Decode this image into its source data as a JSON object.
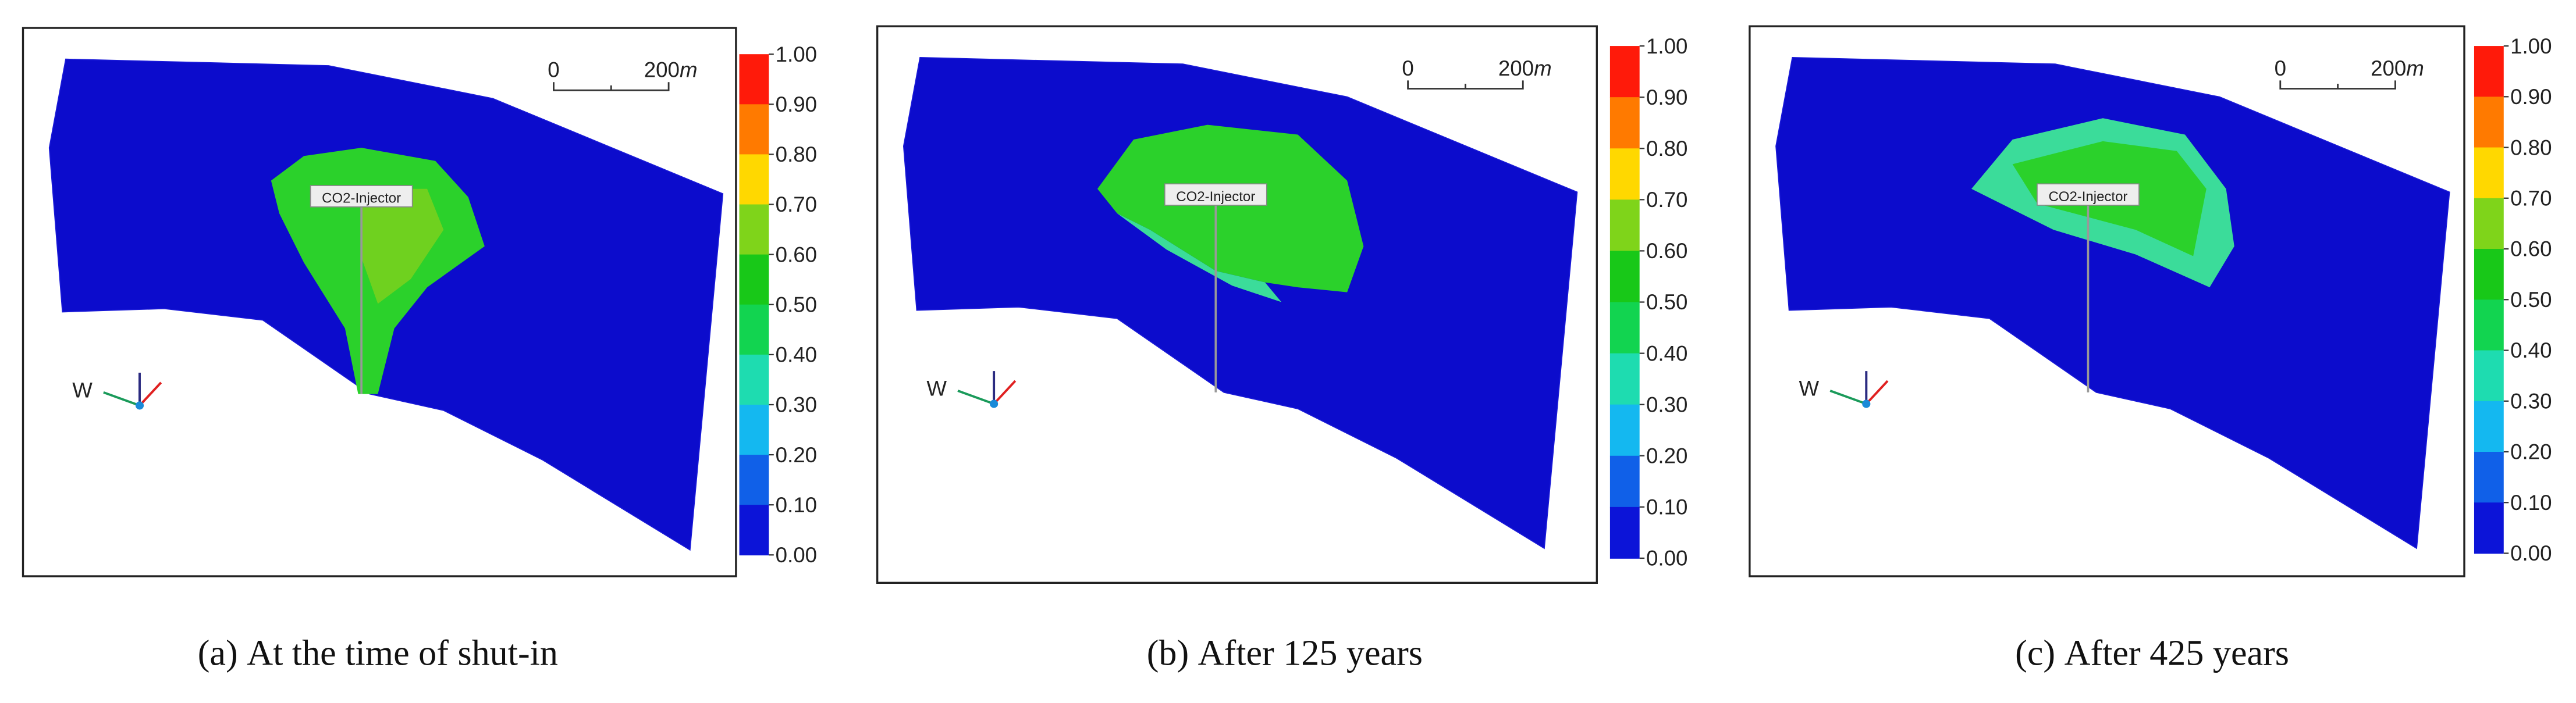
{
  "panels": [
    {
      "label": "(a)",
      "caption": "At the time of shut-in",
      "scale_bar": {
        "start": "0",
        "end": "200",
        "unit": "m"
      },
      "well_label": "CO2-Injector",
      "compass_label": "W"
    },
    {
      "label": "(b)",
      "caption": "After 125 years",
      "scale_bar": {
        "start": "0",
        "end": "200",
        "unit": "m"
      },
      "well_label": "CO2-Injector",
      "compass_label": "W"
    },
    {
      "label": "(c)",
      "caption": "After 425 years",
      "scale_bar": {
        "start": "0",
        "end": "200",
        "unit": "m"
      },
      "well_label": "CO2-Injector",
      "compass_label": "W"
    }
  ],
  "colorbar": {
    "ticks": [
      "1.00",
      "0.90",
      "0.80",
      "0.70",
      "0.60",
      "0.50",
      "0.40",
      "0.30",
      "0.20",
      "0.10",
      "0.00"
    ]
  }
}
